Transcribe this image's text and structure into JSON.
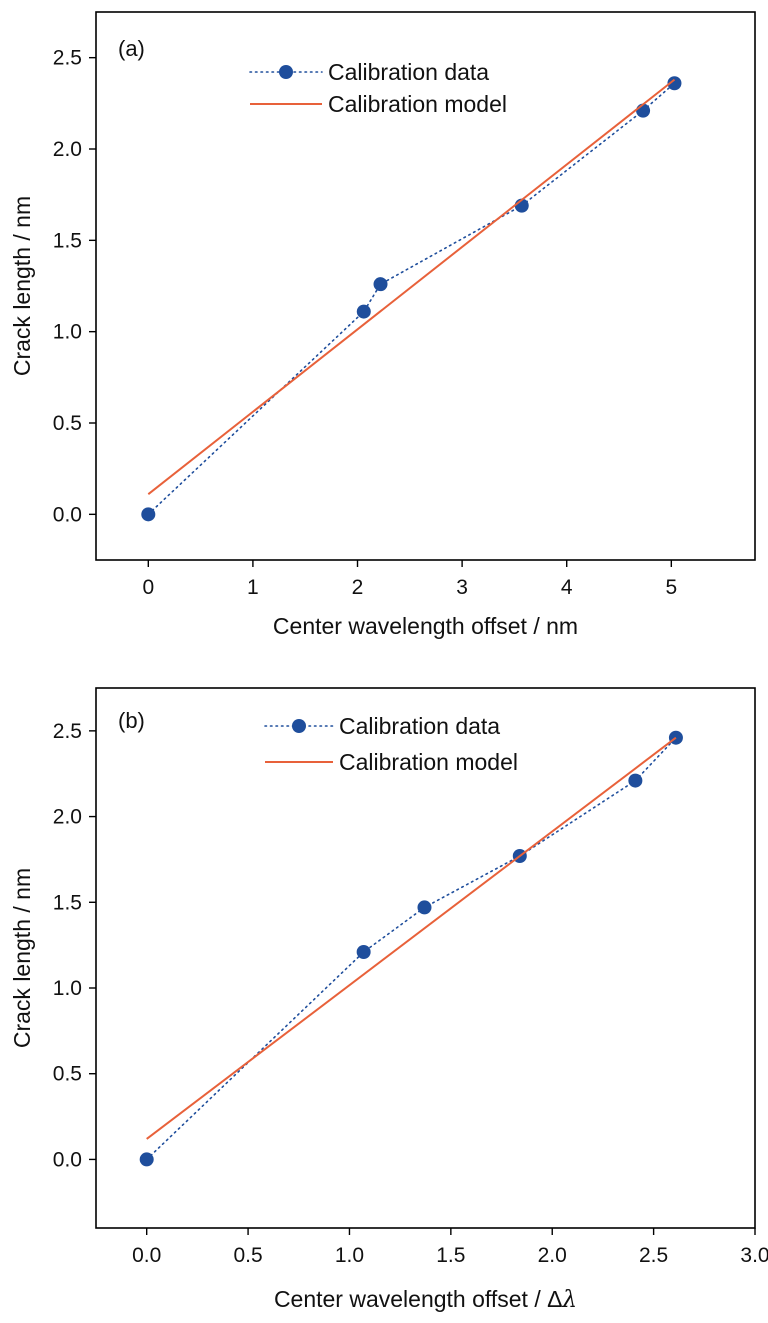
{
  "chart_data": [
    {
      "type": "line",
      "panel_label": "(a)",
      "xlabel": "Center wavelength offset / nm",
      "ylabel": "Crack length / nm",
      "xlim": [
        -0.5,
        5.8
      ],
      "ylim": [
        -0.25,
        2.75
      ],
      "xticks": [
        0,
        1,
        2,
        3,
        4,
        5
      ],
      "xtick_labels": [
        "0",
        "1",
        "2",
        "3",
        "4",
        "5"
      ],
      "yticks": [
        0.0,
        0.5,
        1.0,
        1.5,
        2.0,
        2.5
      ],
      "ytick_labels": [
        "0.0",
        "0.5",
        "1.0",
        "1.5",
        "2.0",
        "2.5"
      ],
      "grid": false,
      "legend_position": "top",
      "series": [
        {
          "name": "Calibration data",
          "style": "dotted-line-with-circle-markers",
          "color": "#1f4e9c",
          "x": [
            0,
            2.06,
            2.22,
            3.57,
            4.73,
            5.03
          ],
          "y": [
            0.0,
            1.11,
            1.26,
            1.69,
            2.21,
            2.36
          ]
        },
        {
          "name": "Calibration model",
          "style": "solid-line",
          "color": "#e8613a",
          "x": [
            0,
            5.03
          ],
          "y": [
            0.11,
            2.38
          ]
        }
      ]
    },
    {
      "type": "line",
      "panel_label": "(b)",
      "xlabel": "Center wavelength offset / Δ",
      "xlabel_symbol": "λ",
      "ylabel": "Crack length / nm",
      "xlim": [
        -0.25,
        3.0
      ],
      "ylim": [
        -0.4,
        2.75
      ],
      "xticks": [
        0.0,
        0.5,
        1.0,
        1.5,
        2.0,
        2.5,
        3.0
      ],
      "xtick_labels": [
        "0.0",
        "0.5",
        "1.0",
        "1.5",
        "2.0",
        "2.5",
        "3.0"
      ],
      "yticks": [
        0.0,
        0.5,
        1.0,
        1.5,
        2.0,
        2.5
      ],
      "ytick_labels": [
        "0.0",
        "0.5",
        "1.0",
        "1.5",
        "2.0",
        "2.5"
      ],
      "grid": false,
      "legend_position": "top",
      "series": [
        {
          "name": "Calibration data",
          "style": "dotted-line-with-circle-markers",
          "color": "#1f4e9c",
          "x": [
            0.0,
            1.07,
            1.37,
            1.84,
            2.41,
            2.61
          ],
          "y": [
            0.0,
            1.21,
            1.47,
            1.77,
            2.21,
            2.46
          ]
        },
        {
          "name": "Calibration model",
          "style": "solid-line",
          "color": "#e8613a",
          "x": [
            0.0,
            2.61
          ],
          "y": [
            0.12,
            2.46
          ]
        }
      ]
    }
  ]
}
